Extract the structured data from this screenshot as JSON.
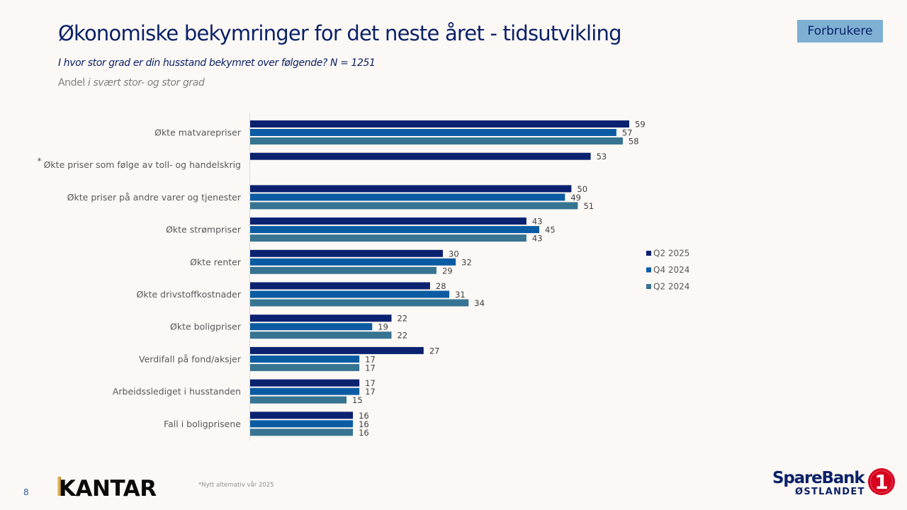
{
  "header": {
    "title": "Økonomiske bekymringer for det neste året - tidsutvikling",
    "subtitle": "I hvor stor grad er din husstand bekymret over følgende? N = 1251",
    "measure_prefix": "Andel",
    "measure_italic": "i svært stor- og stor grad",
    "segment_tag": "Forbrukere"
  },
  "footer": {
    "page_number": "8",
    "kantar_logo_text": "KANTAR",
    "footnote": "*Nytt alternativ vår 2025",
    "bank_logo_line1": "SpareBank",
    "bank_logo_line2": "ØSTLANDET",
    "bank_logo_badge": "1"
  },
  "colors": {
    "Q2 2025": "#0a2270",
    "Q4 2024": "#0a5ba3",
    "Q2 2024": "#367492",
    "title": "#0a2168",
    "bank_red": "#d6001c"
  },
  "chart_data": {
    "type": "bar",
    "orientation": "horizontal",
    "title": "Økonomiske bekymringer for det neste året - tidsutvikling",
    "xlabel": "",
    "ylabel": "",
    "xlim": [
      0,
      60
    ],
    "grid": false,
    "legend_position": "right",
    "categories": [
      "Økte matvarepriser",
      "Økte priser som følge av toll- og handelskrig",
      "Økte priser på andre varer og tjenester",
      "Økte strømpriser",
      "Økte renter",
      "Økte drivstoffkostnader",
      "Økte boligpriser",
      "Verdifall på fond/aksjer",
      "Arbeidsslediget i husstanden",
      "Fall i boligprisene"
    ],
    "category_markers": [
      "",
      "*",
      "",
      "",
      "",
      "",
      "",
      "",
      "",
      ""
    ],
    "series": [
      {
        "name": "Q2 2025",
        "values": [
          59,
          53,
          50,
          43,
          30,
          28,
          22,
          27,
          17,
          16
        ]
      },
      {
        "name": "Q4 2024",
        "values": [
          57,
          null,
          49,
          45,
          32,
          31,
          19,
          17,
          17,
          16
        ]
      },
      {
        "name": "Q2 2024",
        "values": [
          58,
          null,
          51,
          43,
          29,
          34,
          22,
          17,
          15,
          16
        ]
      }
    ]
  }
}
